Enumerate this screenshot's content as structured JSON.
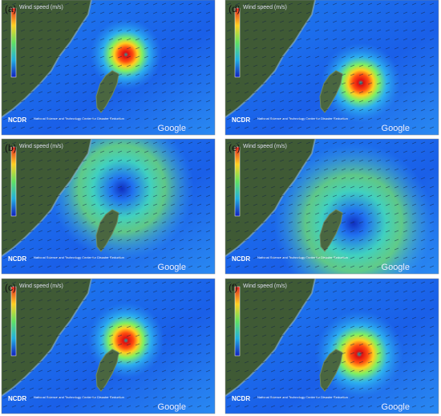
{
  "panels": [
    {
      "label": "(a)"
    },
    {
      "label": "(b)"
    },
    {
      "label": "(c)"
    },
    {
      "label": "(d)"
    },
    {
      "label": "(e)"
    },
    {
      "label": "(f)"
    }
  ],
  "legend_title": "Wind speed (m/s)",
  "logo": "NCDR",
  "org": "National Science and Technology Center for Disaster Reduction",
  "watermark": "Google"
}
